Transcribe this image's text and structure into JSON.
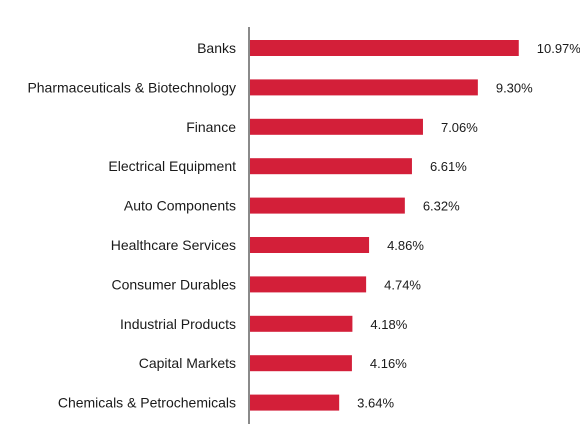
{
  "chart_data": {
    "type": "bar",
    "orientation": "horizontal",
    "categories": [
      "Banks",
      "Pharmaceuticals & Biotechnology",
      "Finance",
      "Electrical Equipment",
      "Auto Components",
      "Healthcare Services",
      "Consumer Durables",
      "Industrial Products",
      "Capital Markets",
      "Chemicals & Petrochemicals"
    ],
    "values": [
      10.97,
      9.3,
      7.06,
      6.61,
      6.32,
      4.86,
      4.74,
      4.18,
      4.16,
      3.64
    ],
    "value_labels": [
      "10.97%",
      "9.30%",
      "7.06%",
      "6.61%",
      "6.32%",
      "4.86%",
      "4.74%",
      "4.18%",
      "4.16%",
      "3.64%"
    ],
    "title": "",
    "xlabel": "",
    "ylabel": "",
    "xlim": [
      0,
      11
    ],
    "grid": false,
    "legend": "none",
    "colors": {
      "bar": "#d31f39",
      "axis": "#8a8a8a",
      "text": "#1a1a1a"
    }
  }
}
